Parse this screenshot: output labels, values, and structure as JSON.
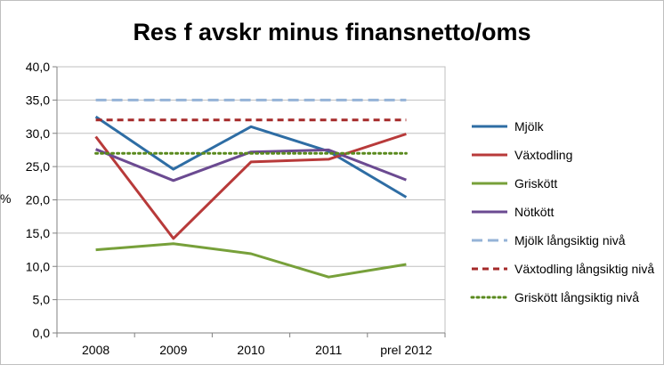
{
  "chart_data": {
    "type": "line",
    "title": "Res f avskr minus finansnetto/oms",
    "ylabel": "%",
    "xlabel": "",
    "categories": [
      "2008",
      "2009",
      "2010",
      "2011",
      "prel 2012"
    ],
    "yticks": [
      "0,0",
      "5,0",
      "10,0",
      "15,0",
      "20,0",
      "25,0",
      "30,0",
      "35,0",
      "40,0"
    ],
    "ylim": [
      0,
      40
    ],
    "grid": true,
    "legend_position": "right",
    "series": [
      {
        "name": "Mjölk",
        "values": [
          32.5,
          24.6,
          31.0,
          27.3,
          20.4
        ],
        "color": "#2e6da4",
        "dash": "solid"
      },
      {
        "name": "Växtodling",
        "values": [
          29.5,
          14.2,
          25.7,
          26.1,
          29.9
        ],
        "color": "#b83a3a",
        "dash": "solid"
      },
      {
        "name": "Griskött",
        "values": [
          12.5,
          13.4,
          11.9,
          8.4,
          10.3
        ],
        "color": "#77a03a",
        "dash": "solid"
      },
      {
        "name": "Nötkött",
        "values": [
          27.6,
          22.9,
          27.2,
          27.5,
          23.0
        ],
        "color": "#6b4a91",
        "dash": "solid"
      },
      {
        "name": "Mjölk långsiktig nivå",
        "values": [
          35,
          35,
          35,
          35,
          35
        ],
        "color": "#95b3d7",
        "dash": "long"
      },
      {
        "name": "Växtodling långsiktig nivå",
        "values": [
          32,
          32,
          32,
          32,
          32
        ],
        "color": "#a52a2a",
        "dash": "short"
      },
      {
        "name": "Griskött långsiktig nivå",
        "values": [
          27,
          27,
          27,
          27,
          27
        ],
        "color": "#5a8a1e",
        "dash": "dot"
      }
    ]
  }
}
